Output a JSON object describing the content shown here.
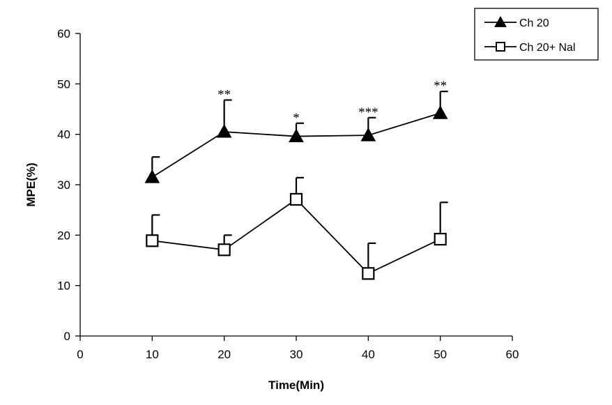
{
  "chart_data": {
    "type": "line",
    "xlabel": "Time(Min)",
    "ylabel": "MPE(%)",
    "xlim": [
      0,
      60
    ],
    "ylim": [
      0,
      60
    ],
    "xticks": [
      0,
      10,
      20,
      30,
      40,
      50,
      60
    ],
    "yticks": [
      0,
      10,
      20,
      30,
      40,
      50,
      60
    ],
    "grid": false,
    "legend_position": "top-right",
    "series": [
      {
        "name": "Ch 20",
        "marker": "filled-triangle",
        "x": [
          10,
          20,
          30,
          40,
          50
        ],
        "y": [
          31.5,
          40.5,
          39.6,
          39.8,
          44.2
        ],
        "error_upper": [
          4.0,
          6.3,
          2.6,
          3.5,
          4.3
        ],
        "annotations": [
          "",
          "**",
          "*",
          "***",
          "**"
        ]
      },
      {
        "name": "Ch 20+ Nal",
        "marker": "open-square",
        "x": [
          10,
          20,
          30,
          40,
          50
        ],
        "y": [
          18.9,
          17.1,
          27.1,
          12.4,
          19.2
        ],
        "error_upper": [
          5.1,
          2.9,
          4.3,
          6.0,
          7.3
        ],
        "annotations": [
          "",
          "",
          "",
          "",
          ""
        ]
      }
    ]
  }
}
